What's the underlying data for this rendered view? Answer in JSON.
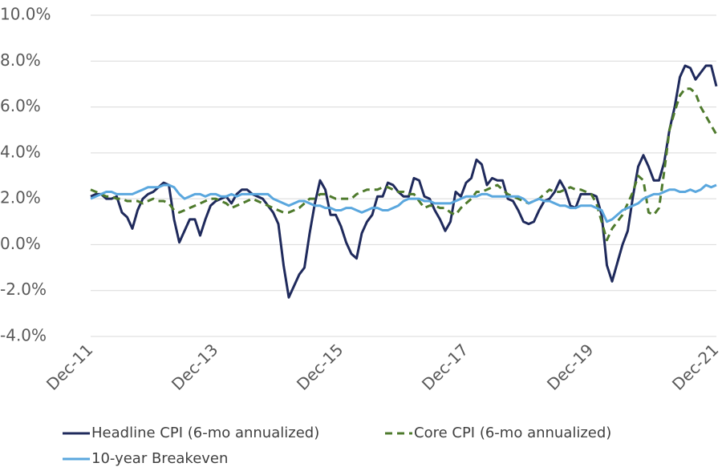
{
  "chart_data": {
    "type": "line",
    "categories": [
      "Dec-11",
      null,
      null,
      null,
      null,
      null,
      null,
      null,
      null,
      null,
      null,
      null,
      null,
      null,
      null,
      null,
      null,
      null,
      null,
      null,
      null,
      null,
      null,
      null,
      "Dec-13",
      null,
      null,
      null,
      null,
      null,
      null,
      null,
      null,
      null,
      null,
      null,
      null,
      null,
      null,
      null,
      null,
      null,
      null,
      null,
      null,
      null,
      null,
      null,
      "Dec-15",
      null,
      null,
      null,
      null,
      null,
      null,
      null,
      null,
      null,
      null,
      null,
      null,
      null,
      null,
      null,
      null,
      null,
      null,
      null,
      null,
      null,
      null,
      null,
      "Dec-17",
      null,
      null,
      null,
      null,
      null,
      null,
      null,
      null,
      null,
      null,
      null,
      null,
      null,
      null,
      null,
      null,
      null,
      null,
      null,
      null,
      null,
      null,
      null,
      "Dec-19",
      null,
      null,
      null,
      null,
      null,
      null,
      null,
      null,
      null,
      null,
      null,
      null,
      null,
      null,
      null,
      null,
      null,
      null,
      null,
      null,
      null,
      null,
      null,
      "Dec-21"
    ],
    "series": [
      {
        "name": "Headline CPI (6-mo annualized)",
        "color": "#1f2a5c",
        "dash": false,
        "values": [
          2.1,
          2.2,
          2.2,
          2.0,
          2.0,
          2.1,
          1.4,
          1.2,
          0.7,
          1.5,
          2.0,
          2.2,
          2.3,
          2.5,
          2.7,
          2.6,
          1.1,
          0.1,
          0.6,
          1.1,
          1.1,
          0.4,
          1.1,
          1.7,
          1.9,
          2.0,
          2.1,
          1.8,
          2.2,
          2.4,
          2.4,
          2.2,
          2.1,
          2.0,
          1.7,
          1.4,
          0.9,
          -0.9,
          -2.3,
          -1.8,
          -1.3,
          -1.0,
          0.5,
          1.8,
          2.8,
          2.4,
          1.3,
          1.3,
          0.8,
          0.1,
          -0.4,
          -0.6,
          0.5,
          1.0,
          1.3,
          2.1,
          2.1,
          2.7,
          2.6,
          2.3,
          2.1,
          2.1,
          2.9,
          2.8,
          2.1,
          2.0,
          1.5,
          1.1,
          0.6,
          1.0,
          2.3,
          2.1,
          2.7,
          2.9,
          3.7,
          3.5,
          2.6,
          2.9,
          2.8,
          2.8,
          2.0,
          1.9,
          1.5,
          1.0,
          0.9,
          1.0,
          1.5,
          1.9,
          2.0,
          2.3,
          2.8,
          2.4,
          1.7,
          1.6,
          2.2,
          2.2,
          2.2,
          2.1,
          1.3,
          -0.9,
          -1.6,
          -0.8,
          0.0,
          0.6,
          2.1,
          3.4,
          3.9,
          3.4,
          2.8,
          2.8,
          3.6,
          5.0,
          6.0,
          7.3,
          7.8,
          7.7,
          7.2,
          7.5,
          7.8,
          7.8,
          6.9
        ]
      },
      {
        "name": "Core CPI (6-mo annualized)",
        "color": "#4e7a2c",
        "dash": true,
        "values": [
          2.4,
          2.3,
          2.2,
          2.1,
          2.1,
          2.0,
          2.0,
          1.9,
          1.9,
          1.9,
          1.8,
          1.9,
          2.0,
          1.9,
          1.9,
          1.8,
          1.5,
          1.4,
          1.5,
          1.6,
          1.7,
          1.8,
          1.9,
          2.0,
          2.0,
          1.9,
          1.8,
          1.6,
          1.7,
          1.8,
          1.9,
          2.0,
          1.9,
          1.8,
          1.7,
          1.6,
          1.5,
          1.4,
          1.4,
          1.5,
          1.6,
          1.8,
          2.0,
          2.0,
          2.2,
          2.2,
          2.1,
          2.0,
          2.0,
          2.0,
          2.0,
          2.2,
          2.3,
          2.4,
          2.4,
          2.4,
          2.5,
          2.5,
          2.4,
          2.3,
          2.3,
          2.2,
          2.2,
          1.9,
          1.6,
          1.7,
          1.7,
          1.6,
          1.6,
          1.4,
          1.3,
          1.6,
          1.8,
          2.0,
          2.3,
          2.3,
          2.4,
          2.5,
          2.6,
          2.4,
          2.2,
          2.1,
          2.0,
          1.9,
          1.8,
          1.9,
          2.0,
          2.2,
          2.4,
          2.3,
          2.3,
          2.4,
          2.5,
          2.4,
          2.4,
          2.3,
          2.2,
          1.8,
          1.0,
          0.2,
          0.7,
          1.0,
          1.3,
          1.8,
          2.3,
          3.0,
          2.8,
          1.4,
          1.3,
          1.6,
          3.2,
          5.0,
          5.8,
          6.5,
          6.8,
          6.8,
          6.6,
          6.0,
          5.6,
          5.2,
          4.8
        ]
      },
      {
        "name": "10-year Breakeven",
        "color": "#5aa7de",
        "dash": false,
        "values": [
          2.0,
          2.1,
          2.2,
          2.3,
          2.3,
          2.2,
          2.2,
          2.2,
          2.2,
          2.3,
          2.4,
          2.5,
          2.5,
          2.5,
          2.6,
          2.6,
          2.5,
          2.2,
          2.0,
          2.1,
          2.2,
          2.2,
          2.1,
          2.2,
          2.2,
          2.1,
          2.1,
          2.2,
          2.1,
          2.2,
          2.2,
          2.2,
          2.2,
          2.2,
          2.2,
          2.0,
          1.9,
          1.8,
          1.7,
          1.8,
          1.9,
          1.9,
          1.8,
          1.7,
          1.7,
          1.6,
          1.6,
          1.5,
          1.5,
          1.6,
          1.6,
          1.5,
          1.4,
          1.5,
          1.6,
          1.6,
          1.5,
          1.5,
          1.6,
          1.7,
          1.9,
          2.0,
          2.0,
          2.0,
          1.9,
          1.9,
          1.8,
          1.8,
          1.8,
          1.8,
          1.9,
          2.0,
          2.1,
          2.1,
          2.1,
          2.2,
          2.2,
          2.1,
          2.1,
          2.1,
          2.1,
          2.1,
          2.1,
          2.0,
          1.8,
          1.9,
          2.0,
          1.9,
          1.9,
          1.8,
          1.7,
          1.7,
          1.6,
          1.6,
          1.7,
          1.7,
          1.7,
          1.6,
          1.5,
          1.0,
          1.1,
          1.3,
          1.5,
          1.6,
          1.7,
          1.8,
          2.0,
          2.1,
          2.2,
          2.2,
          2.3,
          2.4,
          2.4,
          2.3,
          2.3,
          2.4,
          2.3,
          2.4,
          2.6,
          2.5,
          2.6
        ]
      }
    ],
    "ylim": [
      -4,
      10
    ],
    "yticks": [
      {
        "value": -4,
        "label": "-4.0%"
      },
      {
        "value": -2,
        "label": "-2.0%"
      },
      {
        "value": 0,
        "label": "0.0%"
      },
      {
        "value": 2,
        "label": "2.0%"
      },
      {
        "value": 4,
        "label": "4.0%"
      },
      {
        "value": 6,
        "label": "6.0%"
      },
      {
        "value": 8,
        "label": "8.0%"
      },
      {
        "value": 10,
        "label": "10.0%"
      }
    ],
    "grid": true,
    "legend": "bottom"
  }
}
